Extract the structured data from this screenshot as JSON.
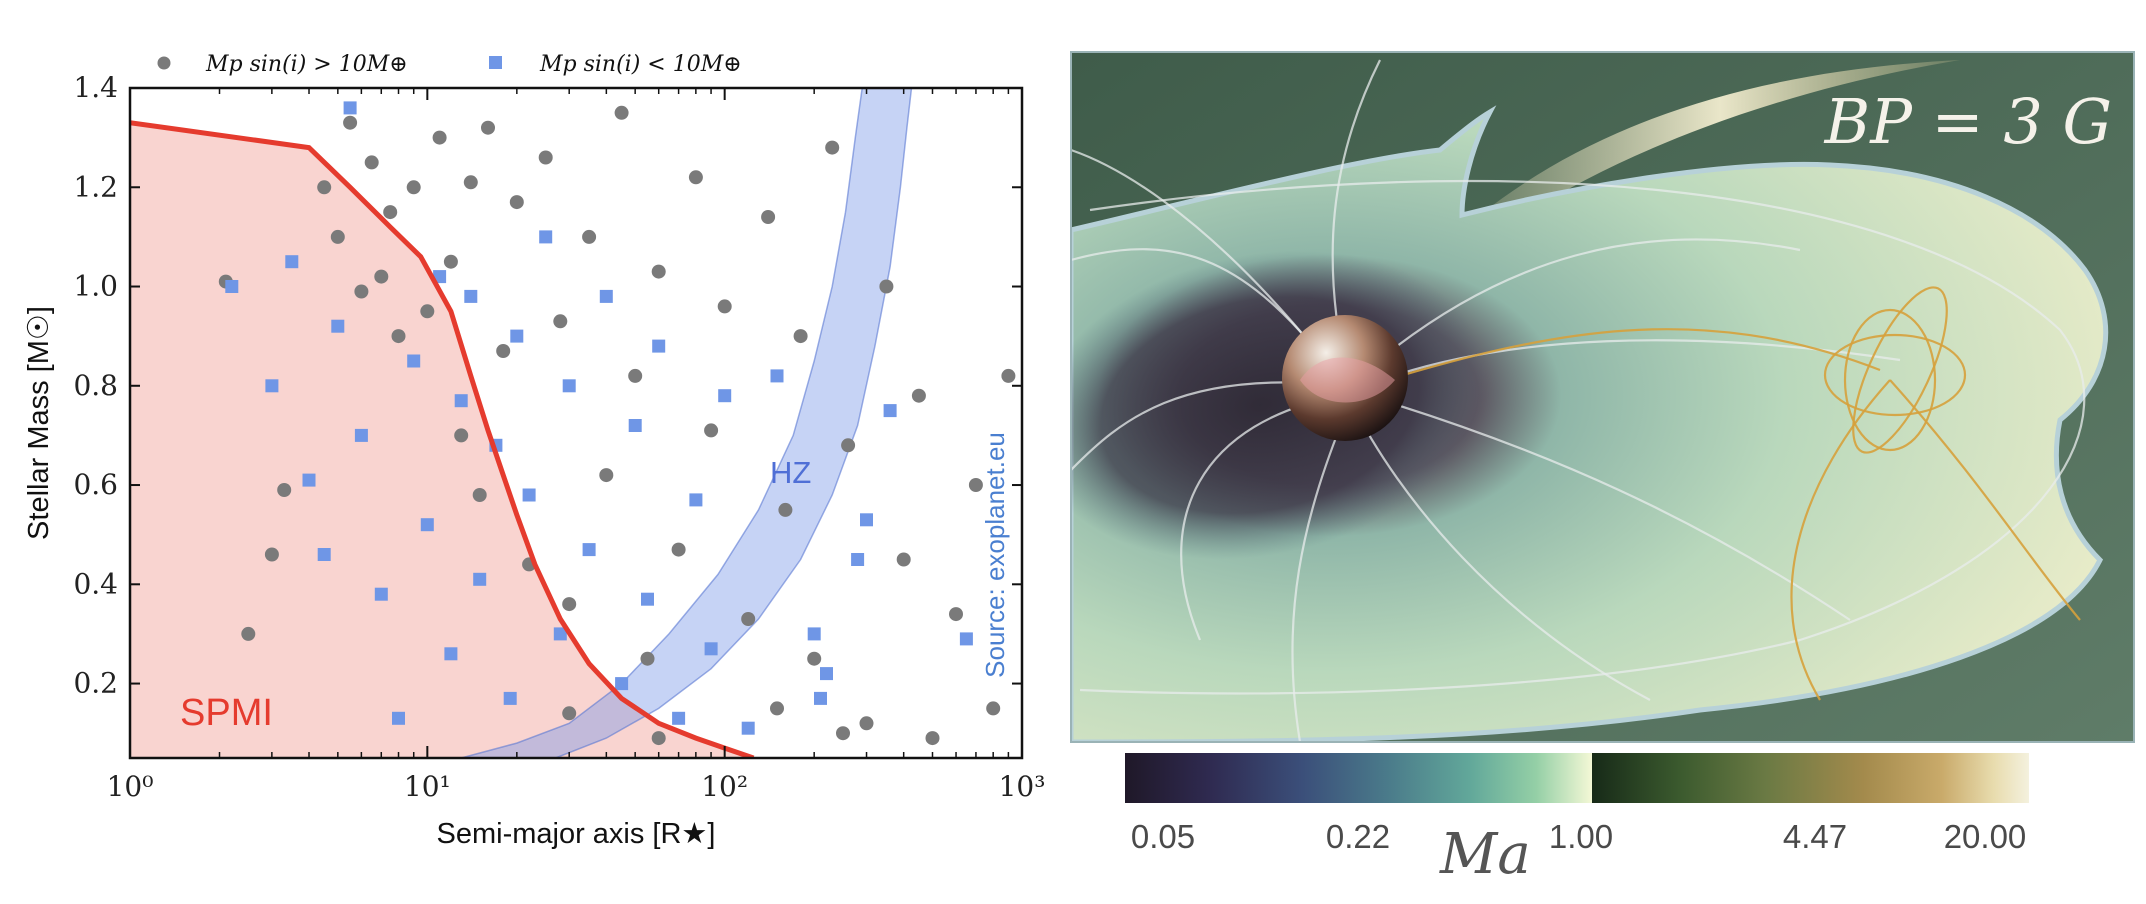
{
  "chart_data": [
    {
      "type": "scatter",
      "title": "",
      "xlabel": "Semi-major axis [R★]",
      "ylabel": "Stellar Mass [M☉]",
      "xscale": "log",
      "xlim": [
        1,
        1000
      ],
      "ylim": [
        0.05,
        1.4
      ],
      "xticks": [
        1,
        10,
        100,
        1000
      ],
      "xtick_labels": [
        "10⁰",
        "10¹",
        "10²",
        "10³"
      ],
      "yticks": [
        0.2,
        0.4,
        0.6,
        0.8,
        1.0,
        1.2,
        1.4
      ],
      "ytick_labels": [
        "0.2",
        "0.4",
        "0.6",
        "0.8",
        "1.0",
        "1.2",
        "1.4"
      ],
      "legend": {
        "position": "top",
        "entries": [
          {
            "label": "Mp sin(i) > 10M⊕",
            "marker": "circle",
            "color": "#7a7a7a"
          },
          {
            "label": "Mp sin(i) < 10M⊕",
            "marker": "square",
            "color": "#6f96e6"
          }
        ]
      },
      "series": [
        {
          "name": "Mp sin(i) > 10M⊕",
          "marker": "circle",
          "color": "#7a7a7a",
          "points": [
            [
              2.1,
              1.01
            ],
            [
              2.5,
              0.3
            ],
            [
              3,
              0.46
            ],
            [
              3.3,
              0.59
            ],
            [
              4.5,
              1.2
            ],
            [
              5,
              1.1
            ],
            [
              5.5,
              1.33
            ],
            [
              6,
              0.99
            ],
            [
              6.5,
              1.25
            ],
            [
              7,
              1.02
            ],
            [
              7.5,
              1.15
            ],
            [
              8,
              0.9
            ],
            [
              9,
              1.2
            ],
            [
              10,
              0.95
            ],
            [
              11,
              1.3
            ],
            [
              12,
              1.05
            ],
            [
              13,
              0.7
            ],
            [
              14,
              1.21
            ],
            [
              15,
              0.58
            ],
            [
              16,
              1.32
            ],
            [
              18,
              0.87
            ],
            [
              20,
              1.17
            ],
            [
              22,
              0.44
            ],
            [
              25,
              1.26
            ],
            [
              28,
              0.93
            ],
            [
              30,
              0.36
            ],
            [
              35,
              1.1
            ],
            [
              40,
              0.62
            ],
            [
              45,
              1.35
            ],
            [
              50,
              0.82
            ],
            [
              55,
              0.25
            ],
            [
              60,
              1.03
            ],
            [
              70,
              0.47
            ],
            [
              80,
              1.22
            ],
            [
              90,
              0.71
            ],
            [
              100,
              0.96
            ],
            [
              120,
              0.33
            ],
            [
              140,
              1.14
            ],
            [
              160,
              0.55
            ],
            [
              180,
              0.9
            ],
            [
              200,
              0.25
            ],
            [
              230,
              1.28
            ],
            [
              260,
              0.68
            ],
            [
              300,
              0.12
            ],
            [
              350,
              1.0
            ],
            [
              400,
              0.45
            ],
            [
              450,
              0.78
            ],
            [
              500,
              0.09
            ],
            [
              600,
              0.34
            ],
            [
              700,
              0.6
            ],
            [
              800,
              0.15
            ],
            [
              900,
              0.82
            ],
            [
              250,
              0.1
            ],
            [
              150,
              0.15
            ],
            [
              60,
              0.09
            ],
            [
              30,
              0.14
            ]
          ]
        },
        {
          "name": "Mp sin(i) < 10M⊕",
          "marker": "square",
          "color": "#6f96e6",
          "points": [
            [
              2.2,
              1.0
            ],
            [
              3,
              0.8
            ],
            [
              3.5,
              1.05
            ],
            [
              4,
              0.61
            ],
            [
              4.5,
              0.46
            ],
            [
              5,
              0.92
            ],
            [
              5.5,
              1.36
            ],
            [
              6,
              0.7
            ],
            [
              7,
              0.38
            ],
            [
              8,
              0.13
            ],
            [
              9,
              0.85
            ],
            [
              10,
              0.52
            ],
            [
              11,
              1.02
            ],
            [
              12,
              0.26
            ],
            [
              13,
              0.77
            ],
            [
              14,
              0.98
            ],
            [
              15,
              0.41
            ],
            [
              17,
              0.68
            ],
            [
              19,
              0.17
            ],
            [
              20,
              0.9
            ],
            [
              22,
              0.58
            ],
            [
              25,
              1.1
            ],
            [
              28,
              0.3
            ],
            [
              30,
              0.8
            ],
            [
              35,
              0.47
            ],
            [
              40,
              0.98
            ],
            [
              45,
              0.2
            ],
            [
              50,
              0.72
            ],
            [
              55,
              0.37
            ],
            [
              60,
              0.88
            ],
            [
              70,
              0.13
            ],
            [
              80,
              0.57
            ],
            [
              90,
              0.27
            ],
            [
              100,
              0.78
            ],
            [
              120,
              0.11
            ],
            [
              150,
              0.82
            ],
            [
              200,
              0.3
            ],
            [
              210,
              0.17
            ],
            [
              220,
              0.22
            ],
            [
              280,
              0.45
            ],
            [
              300,
              0.53
            ],
            [
              360,
              0.75
            ],
            [
              650,
              0.29
            ]
          ]
        }
      ],
      "regions": [
        {
          "name": "SPMI",
          "label": "SPMI",
          "color": "#e53b2e",
          "fill": "#f9d4d0",
          "boundary": [
            [
              1,
              1.33
            ],
            [
              4,
              1.28
            ],
            [
              5.5,
              1.2
            ],
            [
              7.5,
              1.12
            ],
            [
              9.5,
              1.06
            ],
            [
              12,
              0.95
            ],
            [
              14,
              0.82
            ],
            [
              16,
              0.71
            ],
            [
              18,
              0.62
            ],
            [
              20,
              0.54
            ],
            [
              23,
              0.44
            ],
            [
              28,
              0.33
            ],
            [
              35,
              0.24
            ],
            [
              45,
              0.17
            ],
            [
              60,
              0.12
            ],
            [
              80,
              0.09
            ],
            [
              100,
              0.07
            ],
            [
              125,
              0.05
            ]
          ]
        },
        {
          "name": "HZ",
          "label": "HZ",
          "color": "#4f6fd6",
          "fill": "rgba(120,150,230,0.45)",
          "inner": [
            [
              13,
              0.05
            ],
            [
              20,
              0.08
            ],
            [
              30,
              0.12
            ],
            [
              45,
              0.2
            ],
            [
              65,
              0.3
            ],
            [
              95,
              0.42
            ],
            [
              130,
              0.55
            ],
            [
              170,
              0.7
            ],
            [
              200,
              0.85
            ],
            [
              230,
              1.0
            ],
            [
              255,
              1.15
            ],
            [
              275,
              1.3
            ],
            [
              290,
              1.4
            ]
          ],
          "outer": [
            [
              27,
              0.05
            ],
            [
              40,
              0.09
            ],
            [
              60,
              0.15
            ],
            [
              90,
              0.23
            ],
            [
              130,
              0.33
            ],
            [
              180,
              0.45
            ],
            [
              230,
              0.58
            ],
            [
              280,
              0.72
            ],
            [
              320,
              0.88
            ],
            [
              360,
              1.04
            ],
            [
              390,
              1.2
            ],
            [
              410,
              1.32
            ],
            [
              425,
              1.4
            ]
          ]
        }
      ],
      "annotations": [
        "SPMI",
        "HZ",
        "Source: exoplanet.eu"
      ]
    },
    {
      "type": "heatmap",
      "title": "B_P = 3 G",
      "title_text": "BP = 3 G",
      "colorbar": {
        "label": "Ma",
        "ticks": [
          "0.05",
          "0.22",
          "1.00",
          "4.47",
          "20.00"
        ],
        "tick_values": [
          0.05,
          0.22,
          1.0,
          4.47,
          20.0
        ],
        "scale": "log",
        "range": [
          0.05,
          20.0
        ],
        "colors_low": [
          "#1f1828",
          "#2f2a50",
          "#3b4f7a",
          "#4a7a8a",
          "#62a89a",
          "#94cfa6",
          "#f4f8d6"
        ],
        "colors_high": [
          "#172a18",
          "#3b5a2e",
          "#6b7a44",
          "#a38a4c",
          "#c9aa6a",
          "#e8dcae",
          "#f4f1de"
        ]
      }
    }
  ]
}
